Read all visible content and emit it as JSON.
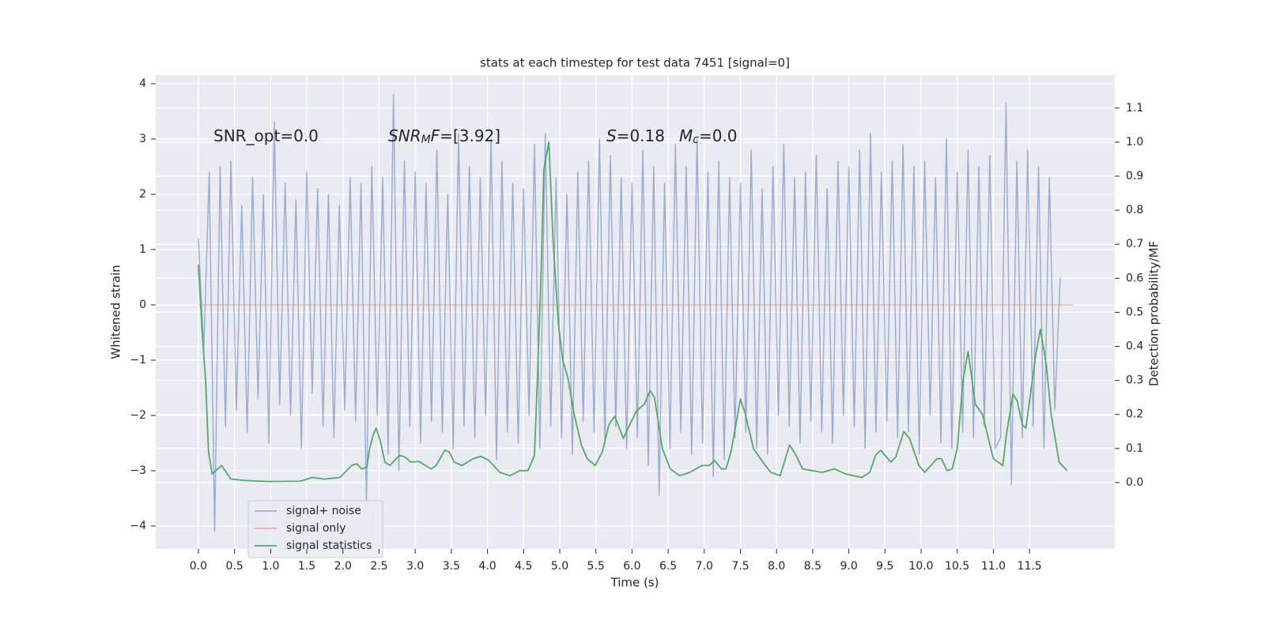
{
  "chart_data": {
    "type": "line",
    "title": "stats at each timestep for test data 7451 [signal=0]",
    "xlabel": "Time (s)",
    "ylabel": "Whitened strain",
    "y2label": "Detection probability/MF",
    "xlim": [
      -0.59,
      12.68
    ],
    "ylim": [
      -4.414,
      4.157
    ],
    "y2lim": [
      -0.195,
      1.197
    ],
    "xticks": [
      {
        "value": 0,
        "label": "0.0"
      },
      {
        "value": 0.5,
        "label": "0.5"
      },
      {
        "value": 1,
        "label": "1.0"
      },
      {
        "value": 1.5,
        "label": "1.5"
      },
      {
        "value": 2,
        "label": "2.0"
      },
      {
        "value": 2.5,
        "label": "2.5"
      },
      {
        "value": 3,
        "label": "3.0"
      },
      {
        "value": 3.5,
        "label": "3.5"
      },
      {
        "value": 4,
        "label": "4.0"
      },
      {
        "value": 4.5,
        "label": "4.5"
      },
      {
        "value": 5,
        "label": "5.0"
      },
      {
        "value": 5.5,
        "label": "5.5"
      },
      {
        "value": 6,
        "label": "6.0"
      },
      {
        "value": 6.5,
        "label": "6.5"
      },
      {
        "value": 7,
        "label": "7.0"
      },
      {
        "value": 7.5,
        "label": "7.5"
      },
      {
        "value": 8,
        "label": "8.0"
      },
      {
        "value": 8.5,
        "label": "8.5"
      },
      {
        "value": 9,
        "label": "9.0"
      },
      {
        "value": 9.5,
        "label": "9.5"
      },
      {
        "value": 10,
        "label": "10.0"
      },
      {
        "value": 10.5,
        "label": "10.5"
      },
      {
        "value": 11,
        "label": "11.0"
      },
      {
        "value": 11.5,
        "label": "11.5"
      }
    ],
    "yticks": [
      {
        "value": -4,
        "label": "−4"
      },
      {
        "value": -3,
        "label": "−3"
      },
      {
        "value": -2,
        "label": "−2"
      },
      {
        "value": -1,
        "label": "−1"
      },
      0,
      1,
      2,
      3,
      4
    ],
    "y2ticks": [
      {
        "value": 0,
        "label": "0.0"
      },
      {
        "value": 0.1,
        "label": "0.1"
      },
      {
        "value": 0.2,
        "label": "0.2"
      },
      {
        "value": 0.3,
        "label": "0.3"
      },
      {
        "value": 0.4,
        "label": "0.4"
      },
      {
        "value": 0.5,
        "label": "0.5"
      },
      {
        "value": 0.6,
        "label": "0.6"
      },
      {
        "value": 0.7,
        "label": "0.7"
      },
      {
        "value": 0.8,
        "label": "0.8"
      },
      {
        "value": 0.9,
        "label": "0.9"
      },
      {
        "value": 1.0,
        "label": "1.0"
      },
      {
        "value": 1.1,
        "label": "1.1"
      }
    ],
    "grid": true,
    "legend": "lower left",
    "annotations": [
      {
        "parts": [
          {
            "text": "SNR_opt=0.0"
          }
        ]
      },
      {
        "parts": [
          {
            "text": "SNR",
            "style": "italic"
          },
          {
            "text": "M",
            "style": "italic-sub"
          },
          {
            "text": "F",
            "style": "italic"
          },
          {
            "text": "=[3.92]"
          }
        ]
      },
      {
        "parts": [
          {
            "text": "S",
            "style": "italic"
          },
          {
            "text": "=0.18"
          }
        ]
      },
      {
        "parts": [
          {
            "text": "M",
            "style": "italic"
          },
          {
            "text": "c",
            "style": "italic-sub"
          },
          {
            "text": "=0.0"
          }
        ]
      }
    ],
    "series": [
      {
        "name": "signal+ noise",
        "color": "#4c72b0",
        "opacity": 0.5,
        "x": [
          0,
          0.075,
          0.15,
          0.225,
          0.3,
          0.375,
          0.45,
          0.525,
          0.6,
          0.675,
          0.75,
          0.825,
          0.9,
          0.975,
          1.05,
          1.125,
          1.2,
          1.275,
          1.35,
          1.425,
          1.5,
          1.575,
          1.65,
          1.725,
          1.8,
          1.875,
          1.95,
          2.025,
          2.1,
          2.175,
          2.25,
          2.325,
          2.4,
          2.475,
          2.55,
          2.625,
          2.7,
          2.775,
          2.85,
          2.925,
          3,
          3.075,
          3.15,
          3.225,
          3.3,
          3.375,
          3.45,
          3.525,
          3.6,
          3.675,
          3.75,
          3.825,
          3.9,
          3.975,
          4.05,
          4.125,
          4.2,
          4.275,
          4.35,
          4.425,
          4.5,
          4.575,
          4.65,
          4.725,
          4.8,
          4.875,
          4.95,
          5.025,
          5.1,
          5.175,
          5.25,
          5.325,
          5.4,
          5.475,
          5.55,
          5.625,
          5.7,
          5.775,
          5.85,
          5.925,
          6,
          6.075,
          6.15,
          6.225,
          6.3,
          6.375,
          6.45,
          6.525,
          6.6,
          6.675,
          6.75,
          6.825,
          6.9,
          6.975,
          7.05,
          7.125,
          7.2,
          7.275,
          7.35,
          7.425,
          7.5,
          7.575,
          7.65,
          7.725,
          7.8,
          7.875,
          7.95,
          8.025,
          8.1,
          8.175,
          8.25,
          8.325,
          8.4,
          8.475,
          8.55,
          8.625,
          8.7,
          8.775,
          8.85,
          8.925,
          9,
          9.075,
          9.15,
          9.225,
          9.3,
          9.375,
          9.45,
          9.525,
          9.6,
          9.675,
          9.75,
          9.825,
          9.9,
          9.975,
          10.05,
          10.125,
          10.2,
          10.275,
          10.35,
          10.425,
          10.5,
          10.575,
          10.65,
          10.725,
          10.8,
          10.875,
          10.95,
          11.025,
          11.1,
          11.175,
          11.25,
          11.325,
          11.4,
          11.475,
          11.55,
          11.625,
          11.7,
          11.775,
          11.85,
          11.925
        ],
        "values": [
          1.2,
          -0.8,
          2.4,
          -4.1,
          2.5,
          -2.2,
          2.6,
          -1.9,
          1.8,
          -2.3,
          2.3,
          -1.7,
          2.0,
          -2.5,
          3.3,
          -1.8,
          2.2,
          -2.0,
          1.9,
          -2.6,
          2.4,
          -1.6,
          2.1,
          -2.2,
          2.0,
          -2.4,
          1.8,
          -1.9,
          2.3,
          -2.1,
          2.2,
          -3.6,
          2.5,
          -2.0,
          2.3,
          -2.7,
          3.8,
          -3.0,
          2.6,
          -2.2,
          2.4,
          -2.5,
          2.2,
          -2.1,
          2.8,
          -2.3,
          2.0,
          -2.6,
          3.1,
          -2.2,
          2.5,
          -2.4,
          2.3,
          -2.0,
          3.0,
          -2.8,
          2.6,
          -2.3,
          2.2,
          -2.5,
          2.1,
          -2.0,
          2.9,
          -2.6,
          3.1,
          -2.2,
          2.3,
          -2.4,
          2.0,
          -2.7,
          2.4,
          -2.1,
          2.6,
          -2.3,
          3.0,
          -2.5,
          2.7,
          -2.2,
          2.3,
          -2.6,
          2.2,
          -2.4,
          2.8,
          -2.9,
          2.5,
          -3.45,
          2.2,
          -2.6,
          2.9,
          -2.3,
          2.5,
          -2.7,
          3.0,
          -2.5,
          2.4,
          -3.1,
          2.6,
          -2.8,
          2.3,
          -2.4,
          2.2,
          -2.3,
          2.8,
          -2.6,
          2.1,
          -2.7,
          2.5,
          -2.0,
          2.9,
          -2.2,
          2.3,
          -2.5,
          2.4,
          -2.1,
          2.7,
          -2.3,
          2.1,
          -2.5,
          2.6,
          -2.0,
          2.5,
          -2.2,
          2.8,
          -2.6,
          3.1,
          -2.3,
          2.4,
          -2.1,
          2.6,
          -2.4,
          2.9,
          -2.3,
          2.5,
          -2.7,
          2.6,
          -2.0,
          2.3,
          -2.5,
          3.0,
          -2.6,
          2.4,
          -2.3,
          2.8,
          -2.4,
          2.5,
          -2.2,
          2.7,
          -2.6,
          -2.4,
          3.65,
          -3.25,
          2.6,
          -2.4,
          2.8,
          -2.2,
          2.5,
          -2.6,
          2.3,
          -1.9,
          0.5
        ]
      },
      {
        "name": "signal only",
        "color": "#dd8452",
        "opacity": 0.5,
        "x": [
          0,
          12.1
        ],
        "values": [
          0,
          0
        ]
      },
      {
        "name": "signal statistics",
        "color": "#55a868",
        "opacity": 1,
        "axis": "y2",
        "x": [
          0,
          0.05,
          0.1,
          0.14,
          0.19,
          0.32,
          0.45,
          0.65,
          0.97,
          1.41,
          1.58,
          1.74,
          1.96,
          2.03,
          2.12,
          2.19,
          2.26,
          2.33,
          2.37,
          2.42,
          2.46,
          2.52,
          2.58,
          2.65,
          2.78,
          2.86,
          2.94,
          3.05,
          3.22,
          3.29,
          3.41,
          3.47,
          3.54,
          3.65,
          3.8,
          3.91,
          4.02,
          4.17,
          4.31,
          4.45,
          4.56,
          4.65,
          4.69,
          4.74,
          4.78,
          4.85,
          4.91,
          4.98,
          5.04,
          5.11,
          5.2,
          5.3,
          5.38,
          5.49,
          5.59,
          5.68,
          5.76,
          5.88,
          5.97,
          6.06,
          6.17,
          6.25,
          6.31,
          6.42,
          6.53,
          6.66,
          6.8,
          6.97,
          7.07,
          7.14,
          7.24,
          7.3,
          7.37,
          7.5,
          7.57,
          7.68,
          7.81,
          7.92,
          8.05,
          8.18,
          8.27,
          8.36,
          8.63,
          8.8,
          8.96,
          9.18,
          9.29,
          9.37,
          9.44,
          9.58,
          9.65,
          9.76,
          9.84,
          9.97,
          10.05,
          10.22,
          10.28,
          10.36,
          10.43,
          10.5,
          10.58,
          10.65,
          10.75,
          10.85,
          11.0,
          11.13,
          11.18,
          11.27,
          11.33,
          11.4,
          11.45,
          11.59,
          11.65,
          11.73,
          11.8,
          11.91,
          12.02
        ],
        "values": [
          0.64,
          0.45,
          0.3,
          0.09,
          0.025,
          0.05,
          0.01,
          0.006,
          0.003,
          0.004,
          0.015,
          0.01,
          0.015,
          0.03,
          0.05,
          0.055,
          0.04,
          0.045,
          0.1,
          0.14,
          0.16,
          0.12,
          0.06,
          0.05,
          0.08,
          0.075,
          0.06,
          0.062,
          0.04,
          0.05,
          0.095,
          0.09,
          0.06,
          0.05,
          0.07,
          0.077,
          0.065,
          0.03,
          0.02,
          0.035,
          0.035,
          0.08,
          0.3,
          0.6,
          0.92,
          1.0,
          0.7,
          0.47,
          0.36,
          0.31,
          0.2,
          0.11,
          0.07,
          0.05,
          0.09,
          0.17,
          0.195,
          0.13,
          0.17,
          0.21,
          0.23,
          0.27,
          0.25,
          0.1,
          0.04,
          0.02,
          0.03,
          0.05,
          0.05,
          0.065,
          0.04,
          0.04,
          0.09,
          0.245,
          0.2,
          0.1,
          0.06,
          0.03,
          0.02,
          0.11,
          0.08,
          0.04,
          0.03,
          0.04,
          0.025,
          0.015,
          0.03,
          0.08,
          0.095,
          0.06,
          0.075,
          0.15,
          0.13,
          0.05,
          0.03,
          0.07,
          0.07,
          0.035,
          0.04,
          0.1,
          0.3,
          0.385,
          0.23,
          0.2,
          0.07,
          0.05,
          0.14,
          0.26,
          0.24,
          0.17,
          0.16,
          0.38,
          0.45,
          0.35,
          0.2,
          0.06,
          0.035
        ]
      }
    ]
  }
}
